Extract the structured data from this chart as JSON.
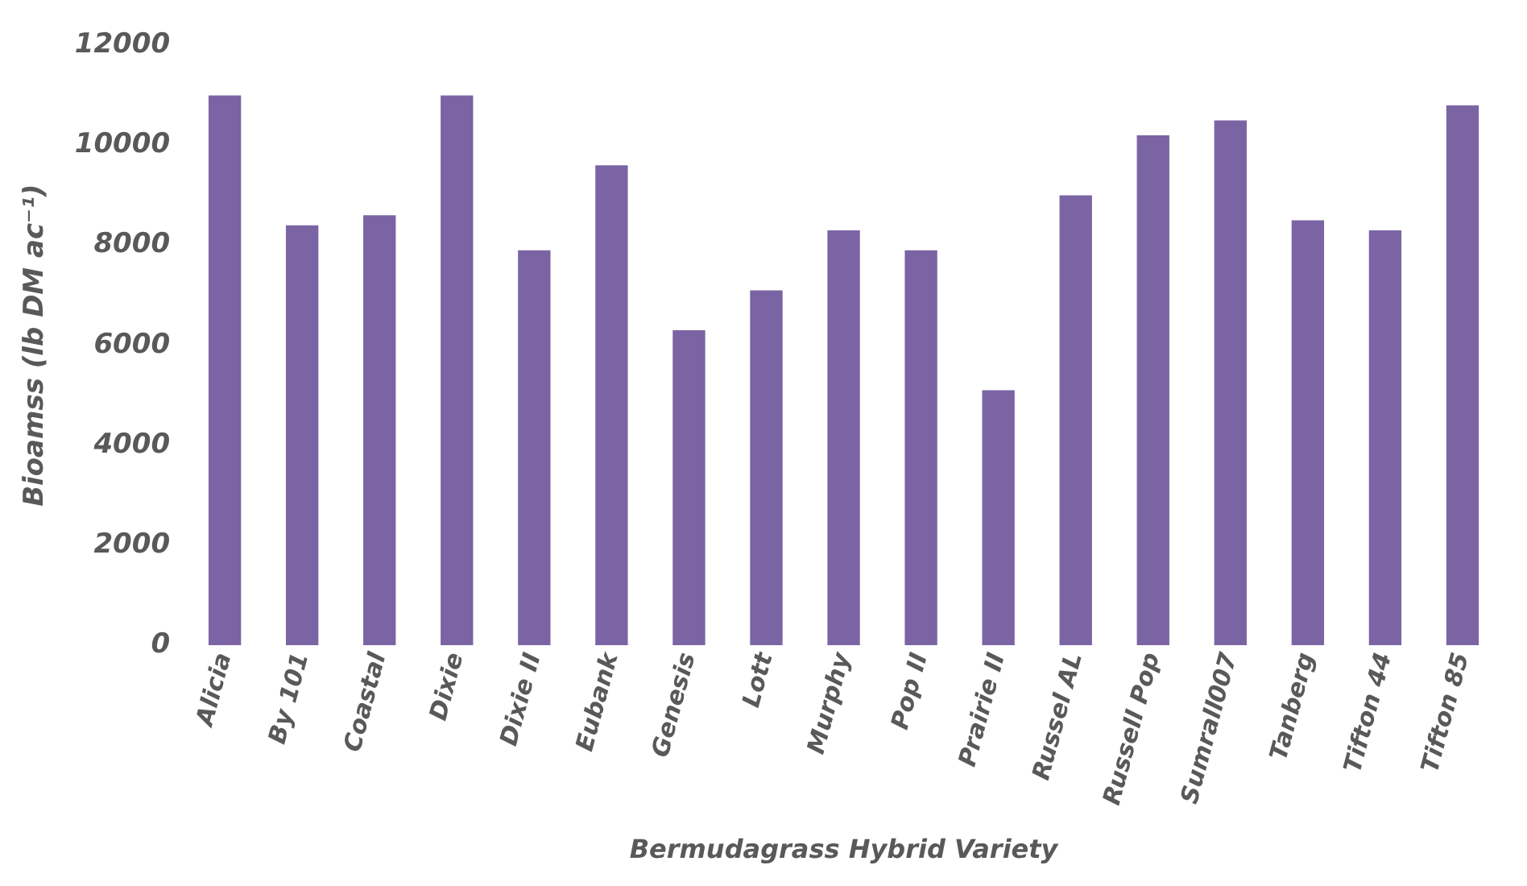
{
  "chart_data": {
    "type": "bar",
    "xlabel": "Bermudagrass Hybrid Variety",
    "ylabel": "Bioamss (lb DM ac⁻¹)",
    "categories": [
      "Alicia",
      "By 101",
      "Coastal",
      "Dixie",
      "Dixie II",
      "Eubank",
      "Genesis",
      "Lott",
      "Murphy",
      "Pop II",
      "Prairie II",
      "Russel AL",
      "Russell Pop",
      "Sumrall007",
      "Tanberg",
      "Tifton 44",
      "Tifton 85"
    ],
    "values": [
      11000,
      8400,
      8600,
      11000,
      7900,
      9600,
      6300,
      7100,
      8300,
      7900,
      5100,
      9000,
      10200,
      10500,
      8500,
      8300,
      10800
    ],
    "color": "#7b64a3",
    "ylim": [
      0,
      12000
    ],
    "yticks": [
      0,
      2000,
      4000,
      6000,
      8000,
      10000,
      12000
    ],
    "grid": false,
    "legend": false
  }
}
